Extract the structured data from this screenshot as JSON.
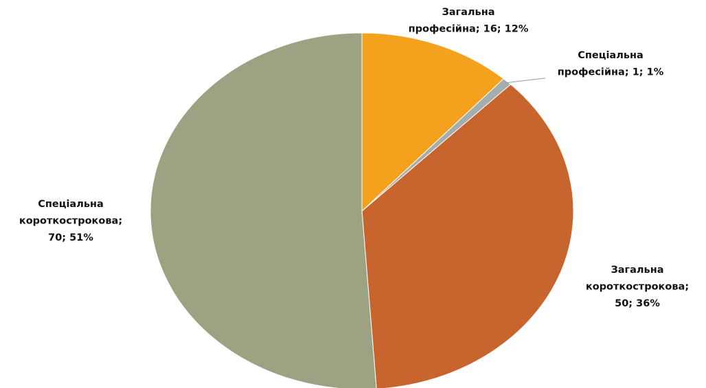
{
  "chart_data": {
    "type": "pie",
    "values": [
      16,
      1,
      50,
      70
    ],
    "value_labels": [
      [
        "Загальна",
        "професійна; 16; 12%"
      ],
      [
        "Спеціальна",
        "професійна; 1; 1%"
      ],
      [
        "Загальна",
        "короткострокова;",
        "50; 36%"
      ],
      [
        "Спеціальна",
        "короткострокова;",
        "70; 51%"
      ]
    ],
    "colors": [
      "#f4a21e",
      "#a5aeae",
      "#c8652f",
      "#9da283"
    ]
  }
}
